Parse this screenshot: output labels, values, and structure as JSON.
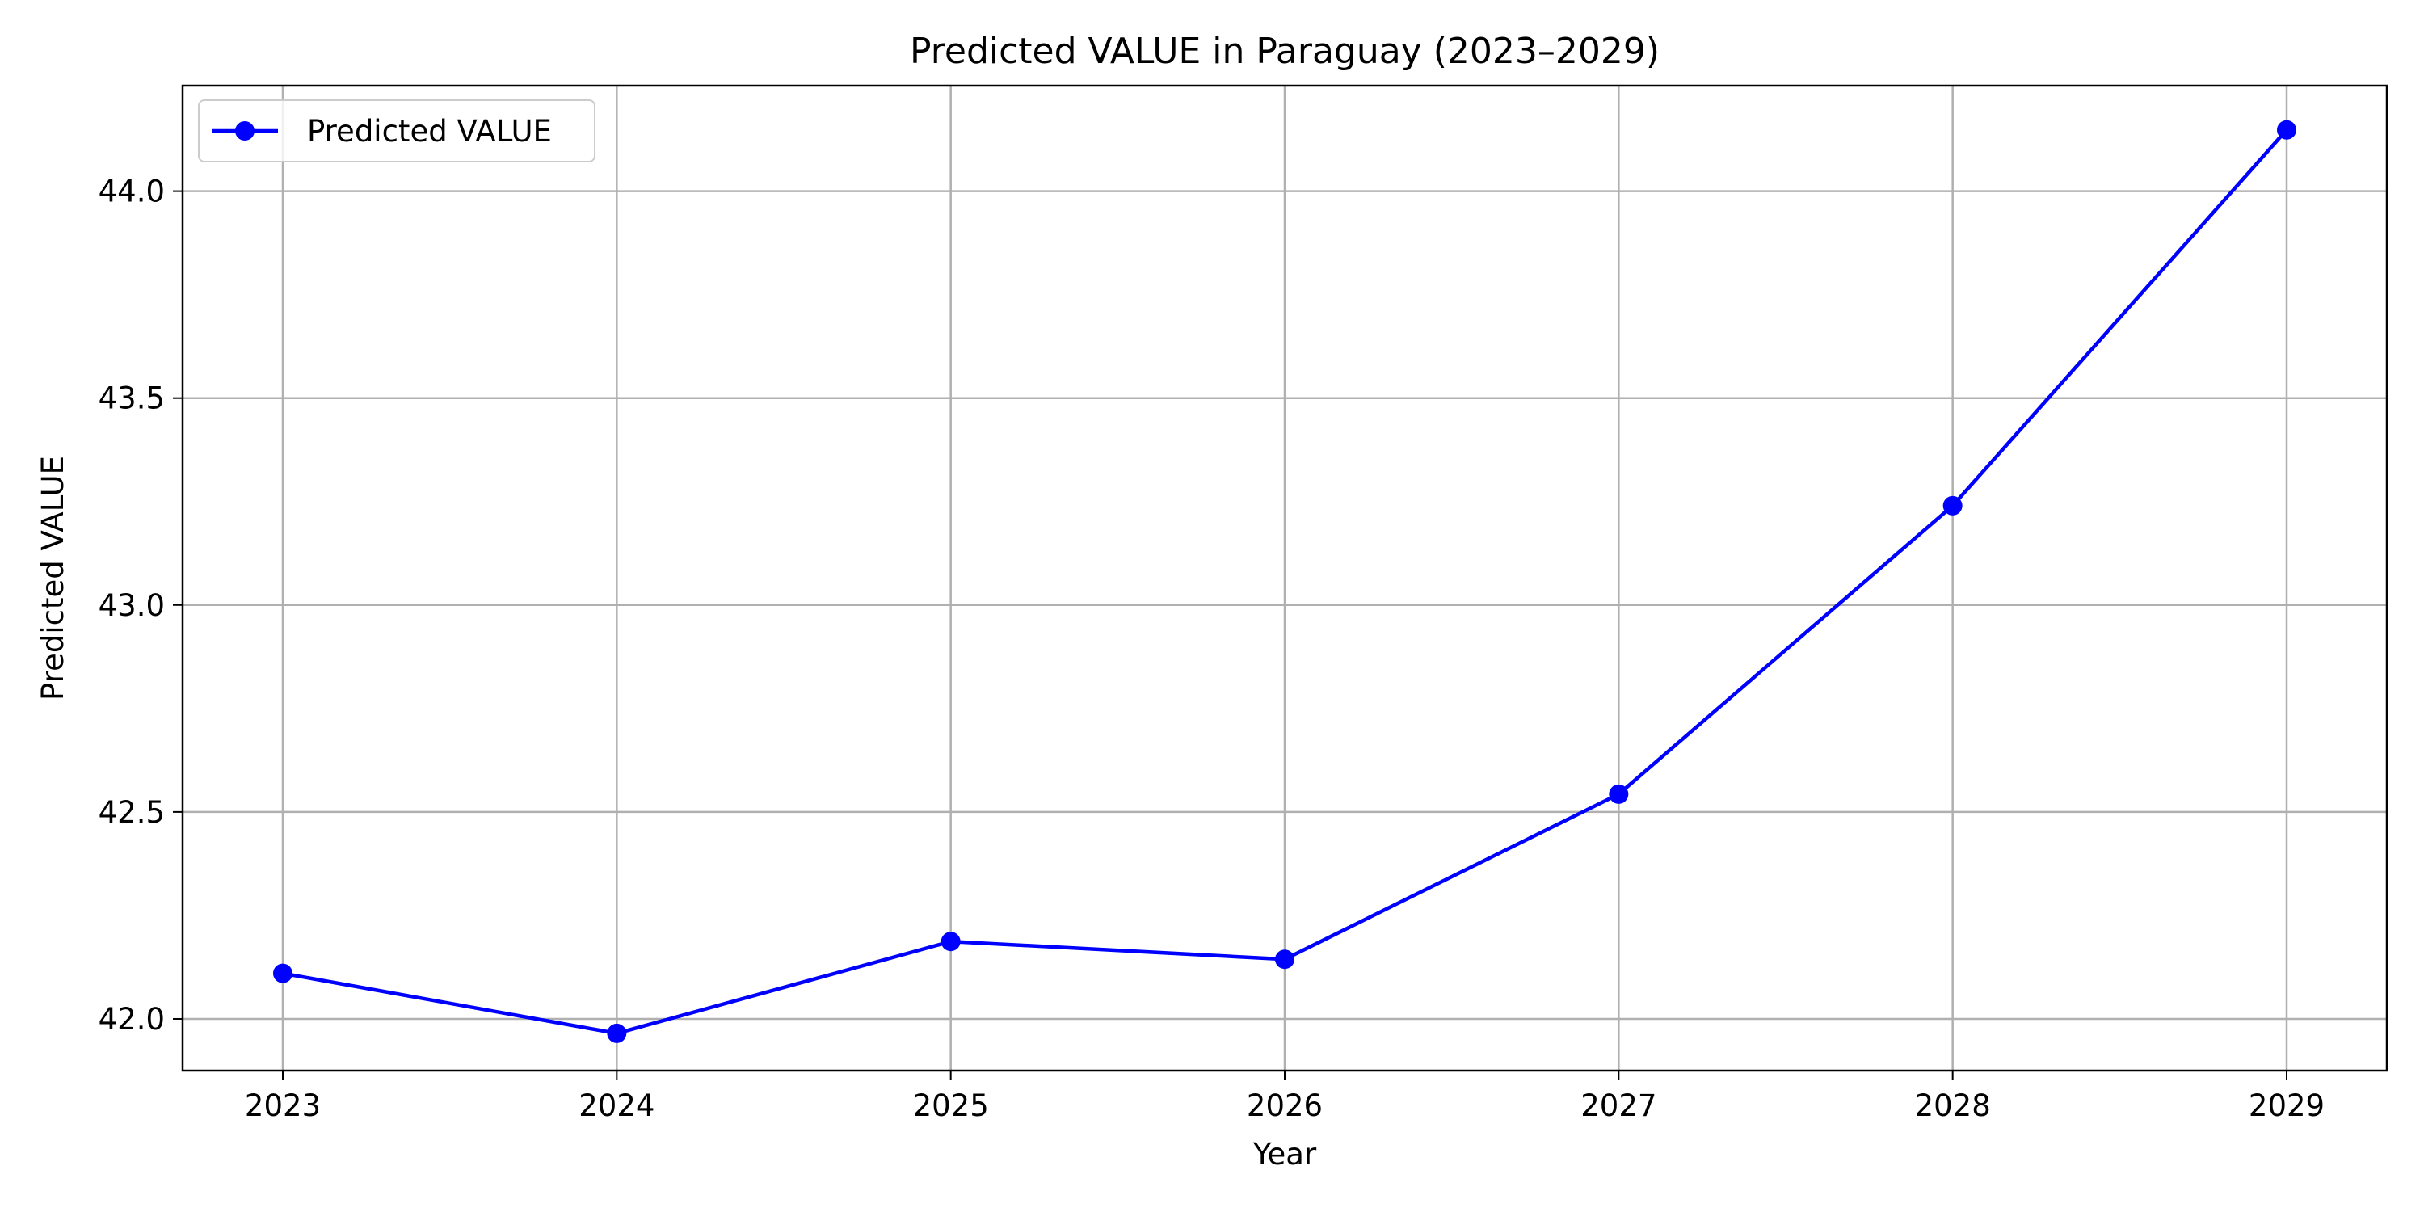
{
  "chart_data": {
    "type": "line",
    "title": "Predicted VALUE in Paraguay (2023–2029)",
    "xlabel": "Year",
    "ylabel": "Predicted VALUE",
    "categories": [
      "2023",
      "2024",
      "2025",
      "2026",
      "2027",
      "2028",
      "2029"
    ],
    "x": [
      2023,
      2024,
      2025,
      2026,
      2027,
      2028,
      2029
    ],
    "xlim": [
      2022.7,
      2029.3
    ],
    "ylim": [
      41.875,
      44.255
    ],
    "yticks": [
      42.0,
      42.5,
      43.0,
      43.5,
      44.0
    ],
    "ytick_labels": [
      "42.0",
      "42.5",
      "43.0",
      "43.5",
      "44.0"
    ],
    "series": [
      {
        "name": "Predicted VALUE",
        "color": "#0000ff",
        "marker": "circle",
        "values": [
          42.11,
          41.965,
          42.187,
          42.144,
          42.543,
          43.24,
          44.148
        ]
      }
    ],
    "grid": true,
    "legend_position": "top-left",
    "colors": {
      "series_line": "#0000ff",
      "grid": "#b0b0b0",
      "axes": "#000000",
      "background": "#ffffff"
    }
  }
}
